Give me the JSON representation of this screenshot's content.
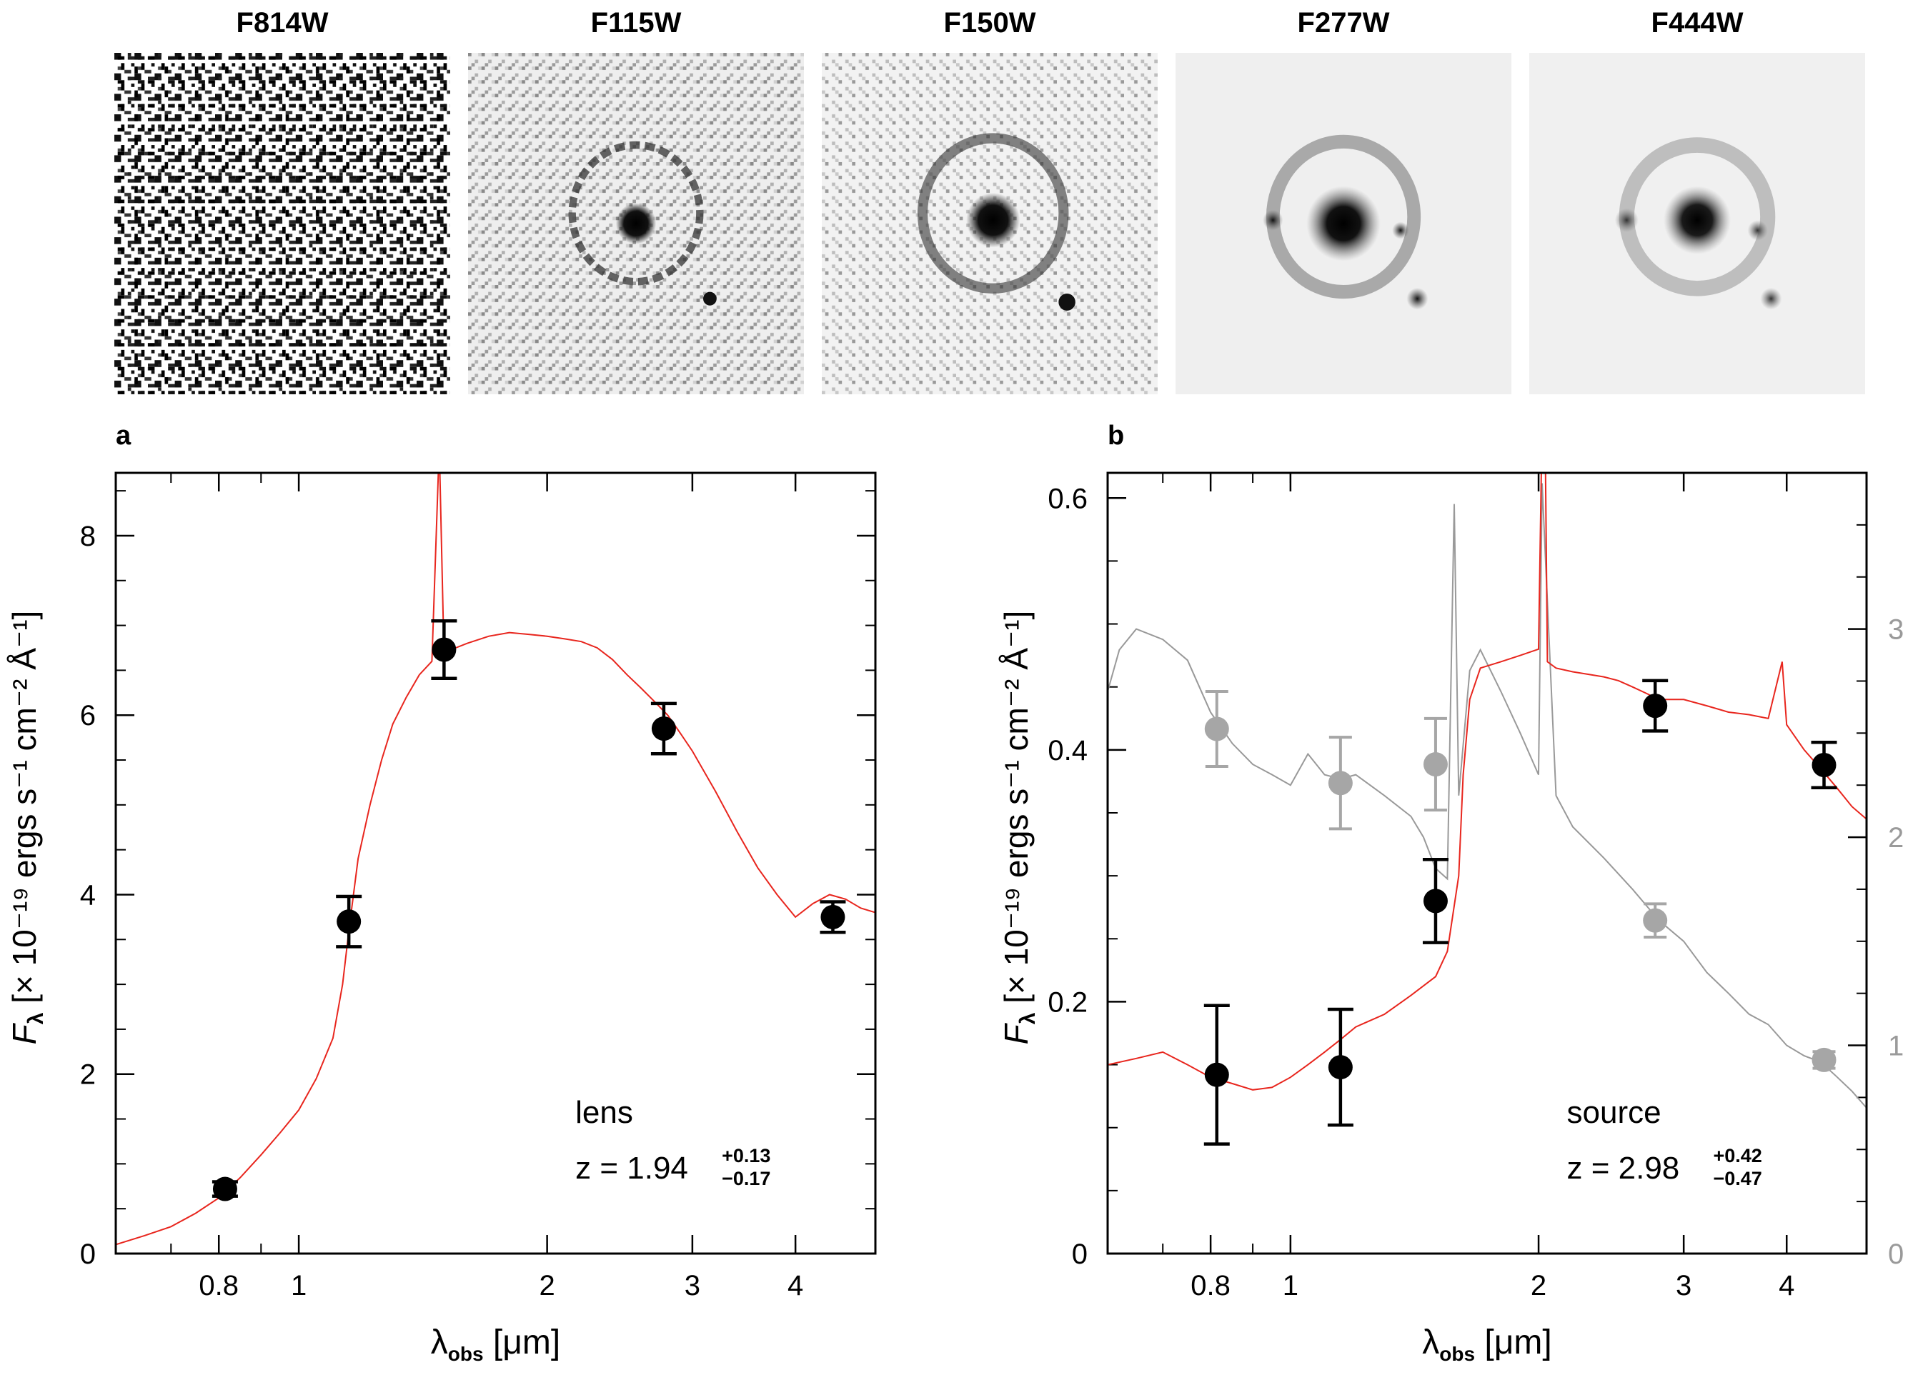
{
  "filters": [
    "F814W",
    "F115W",
    "F150W",
    "F277W",
    "F444W"
  ],
  "colors": {
    "model_red": "#e8261e",
    "source_gray": "#999999",
    "point": "#000000",
    "gray_point": "#a6a6a6"
  },
  "chart_data": [
    {
      "type": "scatter",
      "panel_label": "a",
      "xlabel_main": "λ",
      "xlabel_sub": "obs",
      "xlabel_unit": "[μm]",
      "ylabel_main": "F",
      "ylabel_sub": "λ",
      "ylabel_unit": "[× 10⁻¹⁹ ergs s⁻¹ cm⁻² Å⁻¹]",
      "xscale": "log",
      "xlim": [
        0.6,
        5.0
      ],
      "ylim": [
        0,
        8.7
      ],
      "xticks": [
        0.8,
        1,
        2,
        3,
        4
      ],
      "xtick_labels": [
        "0.8",
        "1",
        "2",
        "3",
        "4"
      ],
      "yticks": [
        0,
        2,
        4,
        6,
        8
      ],
      "ytick_labels": [
        "0",
        "2",
        "4",
        "6",
        "8"
      ],
      "annotation_name": "lens",
      "annotation_z_prefix": "z = 1.94",
      "annotation_z_plus": "+0.13",
      "annotation_z_minus": "−0.17",
      "points": {
        "x": [
          0.814,
          1.15,
          1.5,
          2.77,
          4.44
        ],
        "y": [
          0.72,
          3.7,
          6.73,
          5.85,
          3.75
        ],
        "err": [
          0.08,
          0.28,
          0.32,
          0.28,
          0.17
        ]
      },
      "model": {
        "name": "",
        "x": [
          0.6,
          0.65,
          0.7,
          0.75,
          0.8,
          0.85,
          0.9,
          0.95,
          1.0,
          1.05,
          1.1,
          1.13,
          1.15,
          1.18,
          1.22,
          1.26,
          1.3,
          1.35,
          1.4,
          1.45,
          1.48,
          1.5,
          1.55,
          1.6,
          1.7,
          1.8,
          1.9,
          2.0,
          2.1,
          2.2,
          2.3,
          2.4,
          2.5,
          2.6,
          2.7,
          2.8,
          2.9,
          3.0,
          3.2,
          3.4,
          3.6,
          3.8,
          4.0,
          4.2,
          4.4,
          4.6,
          4.8,
          5.0
        ],
        "y": [
          0.1,
          0.2,
          0.3,
          0.45,
          0.62,
          0.85,
          1.1,
          1.35,
          1.6,
          1.95,
          2.4,
          3.0,
          3.6,
          4.4,
          5.0,
          5.5,
          5.9,
          6.2,
          6.45,
          6.6,
          9.0,
          6.65,
          6.75,
          6.8,
          6.88,
          6.92,
          6.9,
          6.88,
          6.85,
          6.82,
          6.75,
          6.62,
          6.45,
          6.3,
          6.15,
          6.0,
          5.8,
          5.6,
          5.15,
          4.7,
          4.3,
          4.0,
          3.75,
          3.9,
          4.0,
          3.95,
          3.85,
          3.8
        ]
      }
    },
    {
      "type": "scatter",
      "panel_label": "b",
      "xlabel_main": "λ",
      "xlabel_sub": "obs",
      "xlabel_unit": "[μm]",
      "ylabel_main": "F",
      "ylabel_sub": "λ",
      "ylabel_unit": "[× 10⁻¹⁹ ergs s⁻¹ cm⁻² Å⁻¹]",
      "xscale": "log",
      "xlim": [
        0.6,
        5.0
      ],
      "ylim": [
        0,
        0.62
      ],
      "y2lim": [
        0,
        3.75
      ],
      "xticks": [
        0.8,
        1,
        2,
        3,
        4
      ],
      "xtick_labels": [
        "0.8",
        "1",
        "2",
        "3",
        "4"
      ],
      "yticks": [
        0,
        0.2,
        0.4,
        0.6
      ],
      "ytick_labels": [
        "0",
        "0.2",
        "0.4",
        "0.6"
      ],
      "y2ticks": [
        0,
        1,
        2,
        3
      ],
      "y2tick_labels": [
        "0",
        "1",
        "2",
        "3"
      ],
      "annotation_name": "source",
      "annotation_z_prefix": "z = 2.98",
      "annotation_z_plus": "+0.42",
      "annotation_z_minus": "−0.47",
      "points": {
        "x": [
          0.814,
          1.15,
          1.5,
          2.77,
          4.44
        ],
        "y": [
          0.142,
          0.148,
          0.28,
          0.435,
          0.388
        ],
        "err": [
          0.055,
          0.046,
          0.033,
          0.02,
          0.018
        ]
      },
      "points_gray": {
        "x": [
          0.814,
          1.15,
          1.5,
          2.77,
          4.44
        ],
        "y": [
          2.52,
          2.26,
          2.35,
          1.6,
          0.93
        ],
        "err": [
          0.18,
          0.22,
          0.22,
          0.08,
          0.04
        ]
      },
      "model": {
        "name": "",
        "x": [
          0.6,
          0.65,
          0.7,
          0.75,
          0.8,
          0.85,
          0.9,
          0.95,
          1.0,
          1.05,
          1.1,
          1.15,
          1.2,
          1.3,
          1.4,
          1.5,
          1.55,
          1.6,
          1.62,
          1.65,
          1.7,
          1.8,
          1.9,
          2.0,
          2.03,
          2.05,
          2.1,
          2.2,
          2.3,
          2.4,
          2.5,
          2.6,
          2.7,
          2.8,
          3.0,
          3.2,
          3.4,
          3.6,
          3.8,
          3.95,
          4.0,
          4.2,
          4.4,
          4.6,
          4.8,
          5.0
        ],
        "y": [
          0.15,
          0.155,
          0.16,
          0.15,
          0.14,
          0.135,
          0.13,
          0.132,
          0.14,
          0.15,
          0.16,
          0.17,
          0.18,
          0.19,
          0.205,
          0.22,
          0.24,
          0.3,
          0.38,
          0.44,
          0.465,
          0.47,
          0.475,
          0.48,
          0.75,
          0.47,
          0.465,
          0.462,
          0.46,
          0.458,
          0.455,
          0.45,
          0.445,
          0.44,
          0.44,
          0.435,
          0.43,
          0.428,
          0.425,
          0.47,
          0.42,
          0.4,
          0.385,
          0.37,
          0.355,
          0.345
        ]
      },
      "model_gray": {
        "name": "",
        "x": [
          0.6,
          0.62,
          0.65,
          0.7,
          0.75,
          0.8,
          0.85,
          0.9,
          0.95,
          1.0,
          1.05,
          1.1,
          1.15,
          1.2,
          1.3,
          1.4,
          1.45,
          1.5,
          1.55,
          1.58,
          1.6,
          1.65,
          1.7,
          1.8,
          1.9,
          2.0,
          2.02,
          2.1,
          2.2,
          2.4,
          2.6,
          2.8,
          3.0,
          3.2,
          3.4,
          3.6,
          3.8,
          4.0,
          4.2,
          4.4,
          4.6,
          4.8,
          5.0
        ],
        "y": [
          2.7,
          2.9,
          3.0,
          2.95,
          2.85,
          2.6,
          2.45,
          2.35,
          2.3,
          2.25,
          2.4,
          2.3,
          2.28,
          2.3,
          2.2,
          2.1,
          2.0,
          1.85,
          1.8,
          3.6,
          2.2,
          2.8,
          2.9,
          2.7,
          2.5,
          2.3,
          3.7,
          2.2,
          2.05,
          1.9,
          1.75,
          1.6,
          1.5,
          1.35,
          1.25,
          1.15,
          1.1,
          1.0,
          0.95,
          0.92,
          0.85,
          0.78,
          0.7
        ]
      }
    }
  ]
}
